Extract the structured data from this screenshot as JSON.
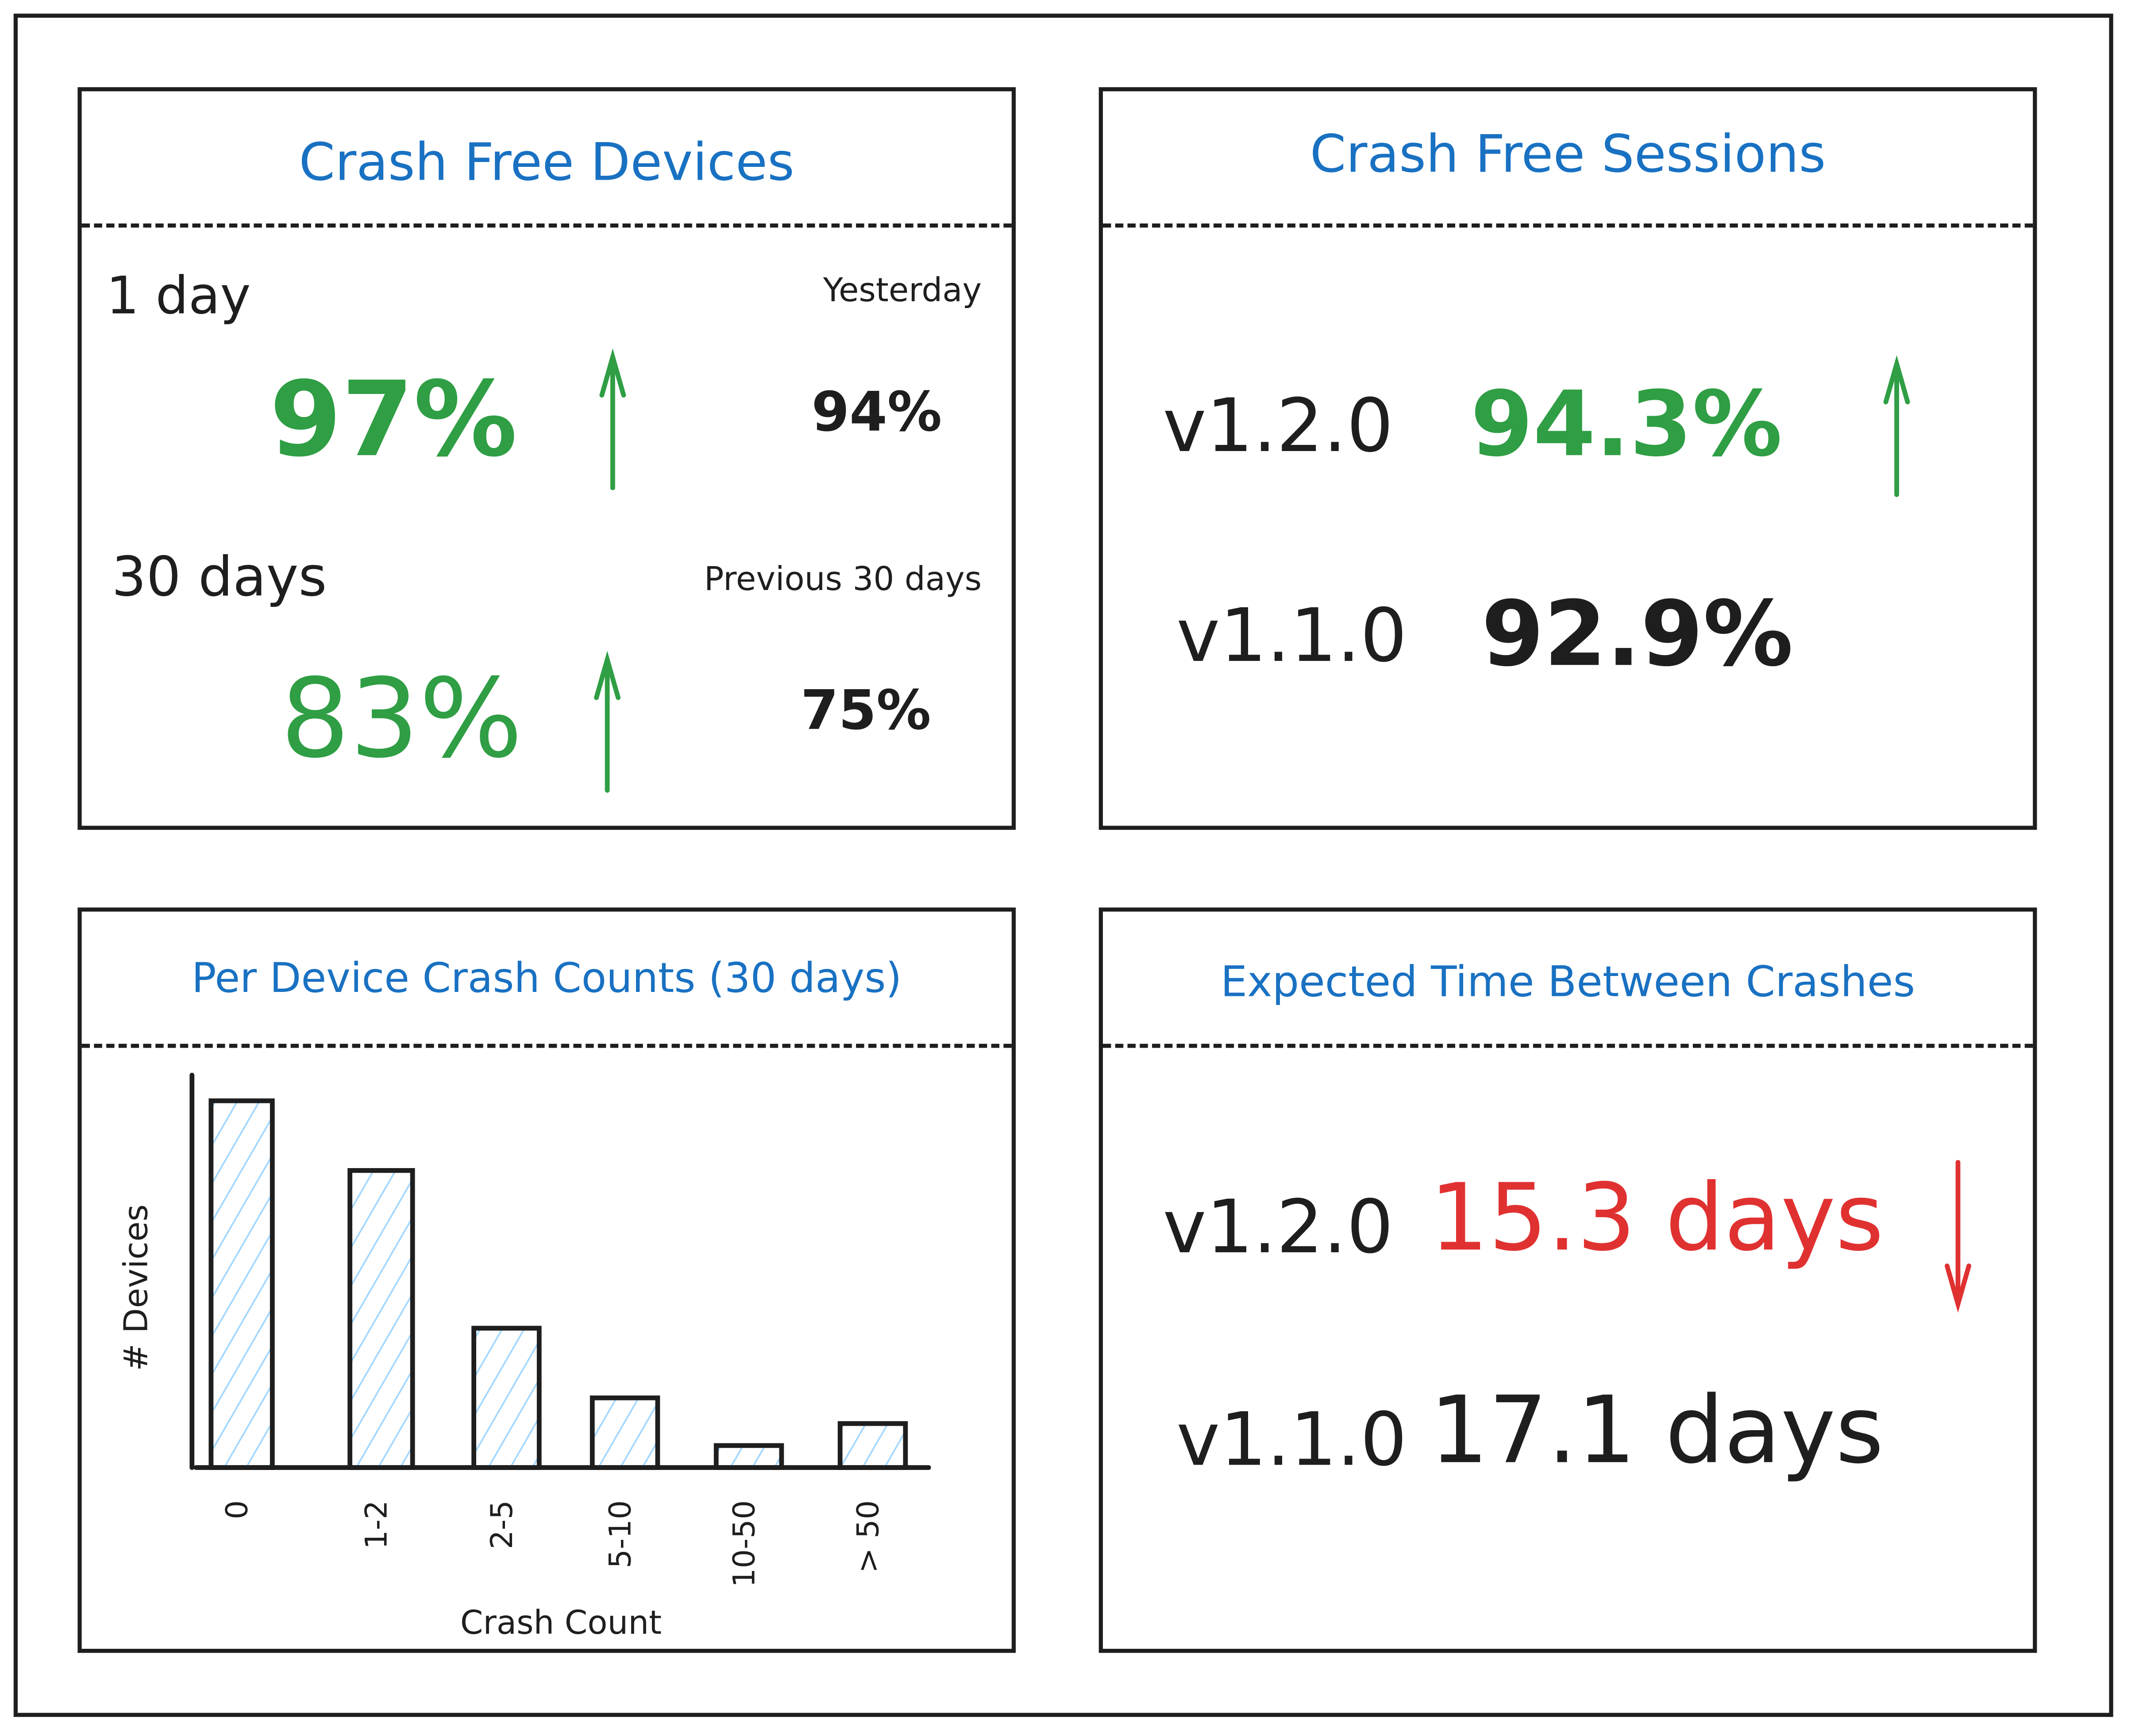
{
  "colors": {
    "title": "#1971c2",
    "positive": "#2f9e44",
    "negative": "#e03131",
    "text": "#1e1e1e",
    "bar_hatch": "#a5d8ff"
  },
  "crash_free_devices": {
    "title": "Crash Free Devices",
    "day": {
      "label": "1 day",
      "value": "97%",
      "trend": "up",
      "compare_label": "Yesterday",
      "compare_value": "94%"
    },
    "month": {
      "label": "30 days",
      "value": "83%",
      "trend": "up",
      "compare_label": "Previous 30 days",
      "compare_value": "75%"
    }
  },
  "crash_free_sessions": {
    "title": "Crash Free Sessions",
    "rows": [
      {
        "version": "v1.2.0",
        "value": "94.3%",
        "trend": "up"
      },
      {
        "version": "v1.1.0",
        "value": "92.9%"
      }
    ]
  },
  "crash_counts": {
    "title": "Per Device Crash Counts (30 days)"
  },
  "expected_time": {
    "title": "Expected Time Between Crashes",
    "rows": [
      {
        "version": "v1.2.0",
        "value": "15.3 days",
        "trend": "down"
      },
      {
        "version": "v1.1.0",
        "value": "17.1 days"
      }
    ]
  },
  "chart_data": {
    "type": "bar",
    "title": "Per Device Crash Counts (30 days)",
    "xlabel": "Crash Count",
    "ylabel": "# Devices",
    "categories": [
      "0",
      "1-2",
      "2-5",
      "5-10",
      "10-50",
      "> 50"
    ],
    "values": [
      100,
      81,
      38,
      19,
      6,
      12
    ],
    "ylim": [
      0,
      107
    ],
    "grid": false
  }
}
